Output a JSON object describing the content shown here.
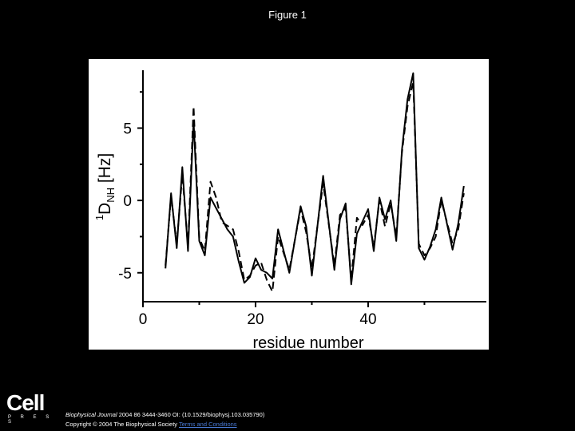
{
  "slide": {
    "title": "Figure 1",
    "citation_journal": "Biophysical Journal",
    "citation_rest": " 2004 86 3444-3460 OI: (10.1529/biophysj.103.035790)",
    "copyright_text": "Copyright © 2004 The Biophysical Society ",
    "terms_link": "Terms and Conditions",
    "logo_word": "Cell",
    "logo_sub": "P R E S S"
  },
  "colors": {
    "background": "#000000",
    "panel": "#ffffff",
    "ink": "#000000",
    "link": "#4a7bd6"
  },
  "chart_data": {
    "type": "line",
    "title": "",
    "xlabel": "residue number",
    "ylabel_super": "1",
    "ylabel_main": "D",
    "ylabel_sub": "NH",
    "ylabel_unit": " [Hz]",
    "xlim": [
      0,
      61
    ],
    "ylim": [
      -7,
      9
    ],
    "xticks": [
      0,
      20,
      40
    ],
    "yticks": [
      -5,
      0,
      5
    ],
    "x_minor_ticks": [
      10,
      30,
      50
    ],
    "y_minor_ticks": [
      -7.5,
      -2.5,
      2.5,
      7.5
    ],
    "grid": false,
    "series": [
      {
        "style": "solid",
        "x": [
          4,
          5,
          6,
          7,
          8,
          9,
          10,
          11,
          12,
          15,
          16,
          17,
          18,
          19,
          20,
          21,
          22,
          23,
          24,
          26,
          28,
          29,
          30,
          32,
          34,
          35,
          36,
          37,
          38,
          40,
          41,
          42,
          43,
          44,
          45,
          46,
          47,
          48,
          49,
          50,
          51,
          52,
          53,
          55,
          56,
          57
        ],
        "y": [
          -4.7,
          0.5,
          -3.3,
          2.3,
          -3.5,
          5.5,
          -2.8,
          -3.8,
          0.2,
          -2.0,
          -2.5,
          -4.2,
          -5.7,
          -5.3,
          -4.0,
          -4.8,
          -5.0,
          -5.4,
          -2.0,
          -5.0,
          -0.4,
          -1.8,
          -5.2,
          1.7,
          -4.8,
          -1.3,
          -0.2,
          -5.8,
          -2.3,
          -0.6,
          -3.5,
          0.2,
          -1.3,
          0.0,
          -2.8,
          3.5,
          7.0,
          8.8,
          -3.3,
          -4.1,
          -3.2,
          -2.0,
          0.2,
          -3.4,
          -1.6,
          1.0
        ]
      },
      {
        "style": "dashed",
        "x": [
          4,
          5,
          6,
          7,
          8,
          9,
          10,
          11,
          12,
          13,
          14,
          16,
          17,
          18,
          19,
          20,
          21,
          22,
          23,
          24,
          26,
          28,
          29,
          30,
          32,
          34,
          35,
          36,
          37,
          38,
          39,
          40,
          41,
          42,
          43,
          44,
          45,
          46,
          47,
          48,
          49,
          50,
          51,
          52,
          53,
          55,
          56,
          57
        ],
        "y": [
          -4.5,
          0.3,
          -3.0,
          1.8,
          -3.2,
          6.5,
          -2.6,
          -3.5,
          1.3,
          0.2,
          -1.5,
          -2.0,
          -3.5,
          -5.5,
          -5.2,
          -4.5,
          -4.3,
          -5.5,
          -6.3,
          -2.5,
          -4.8,
          -0.6,
          -2.2,
          -4.7,
          1.2,
          -4.5,
          -1.0,
          -0.5,
          -5.5,
          -1.2,
          -1.7,
          -1.0,
          -3.2,
          0.0,
          -1.8,
          -0.2,
          -2.5,
          3.3,
          6.5,
          8.2,
          -3.0,
          -3.8,
          -3.3,
          -2.5,
          0.0,
          -3.0,
          -2.0,
          0.5
        ]
      }
    ]
  }
}
